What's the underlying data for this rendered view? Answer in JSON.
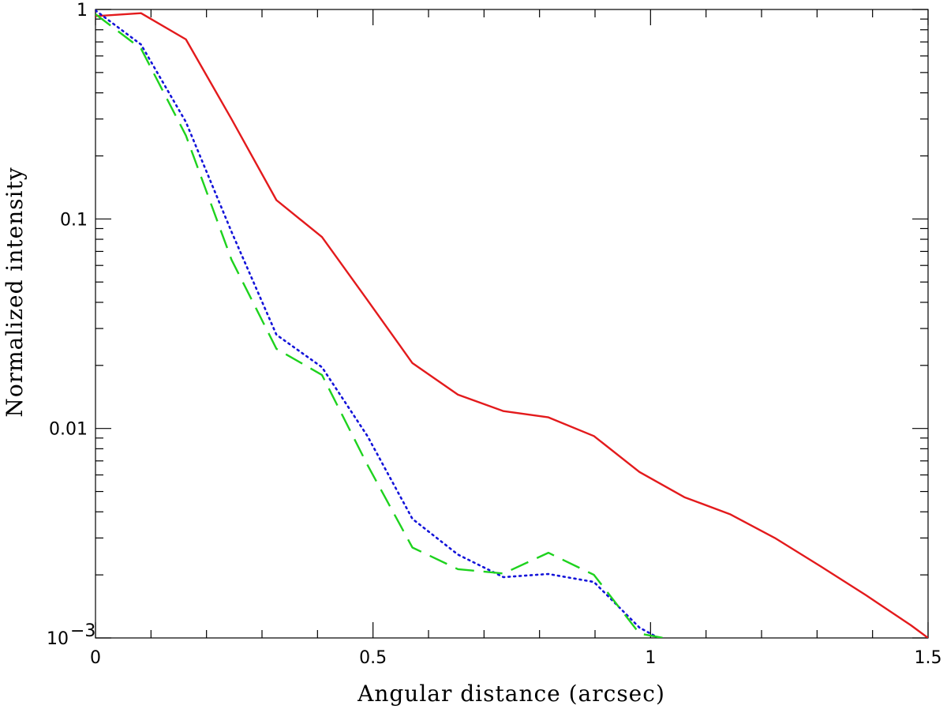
{
  "chart_data": {
    "type": "line",
    "title": "",
    "xlabel": "Angular distance (arcsec)",
    "ylabel": "Normalized intensity",
    "xlim": [
      0,
      1.5
    ],
    "ylim": [
      0.001,
      1
    ],
    "yscale": "log",
    "grid": false,
    "x_ticks": [
      {
        "value": 0,
        "label": "0"
      },
      {
        "value": 0.5,
        "label": "0.5"
      },
      {
        "value": 1,
        "label": "1"
      },
      {
        "value": 1.5,
        "label": "1.5"
      }
    ],
    "y_ticks": [
      {
        "value": 1,
        "label": "1"
      },
      {
        "value": 0.1,
        "label": "0.1"
      },
      {
        "value": 0.01,
        "label": "0.01"
      },
      {
        "value": 0.001,
        "label": "10",
        "exponent": "−3"
      }
    ],
    "series": [
      {
        "color": "#e31a1c",
        "style": "solid",
        "points": [
          [
            0,
            0.93
          ],
          [
            0.082,
            0.96
          ],
          [
            0.163,
            0.72
          ],
          [
            0.245,
            0.3
          ],
          [
            0.326,
            0.123
          ],
          [
            0.408,
            0.082
          ],
          [
            0.49,
            0.041
          ],
          [
            0.571,
            0.0205
          ],
          [
            0.653,
            0.0145
          ],
          [
            0.735,
            0.0121
          ],
          [
            0.816,
            0.0113
          ],
          [
            0.898,
            0.0092
          ],
          [
            0.98,
            0.0062
          ],
          [
            1.061,
            0.0047
          ],
          [
            1.143,
            0.0039
          ],
          [
            1.224,
            0.003
          ],
          [
            1.306,
            0.0022
          ],
          [
            1.388,
            0.0016
          ],
          [
            1.469,
            0.00115
          ],
          [
            1.5,
            0.001
          ]
        ]
      },
      {
        "color": "#1414d9",
        "style": "dotted",
        "points": [
          [
            0,
            0.99
          ],
          [
            0.082,
            0.68
          ],
          [
            0.163,
            0.29
          ],
          [
            0.245,
            0.087
          ],
          [
            0.326,
            0.028
          ],
          [
            0.408,
            0.0196
          ],
          [
            0.49,
            0.0092
          ],
          [
            0.571,
            0.0037
          ],
          [
            0.653,
            0.0025
          ],
          [
            0.735,
            0.00195
          ],
          [
            0.816,
            0.00202
          ],
          [
            0.898,
            0.00185
          ],
          [
            0.98,
            0.00112
          ],
          [
            1.03,
            0.00095
          ]
        ]
      },
      {
        "color": "#1ed21e",
        "style": "dashed",
        "points": [
          [
            0,
            0.95
          ],
          [
            0.082,
            0.65
          ],
          [
            0.163,
            0.25
          ],
          [
            0.245,
            0.064
          ],
          [
            0.326,
            0.024
          ],
          [
            0.408,
            0.018
          ],
          [
            0.49,
            0.0067
          ],
          [
            0.571,
            0.0027
          ],
          [
            0.653,
            0.00213
          ],
          [
            0.735,
            0.00203
          ],
          [
            0.816,
            0.00255
          ],
          [
            0.898,
            0.002
          ],
          [
            0.98,
            0.00105
          ],
          [
            1.05,
            0.00097
          ]
        ]
      }
    ]
  }
}
